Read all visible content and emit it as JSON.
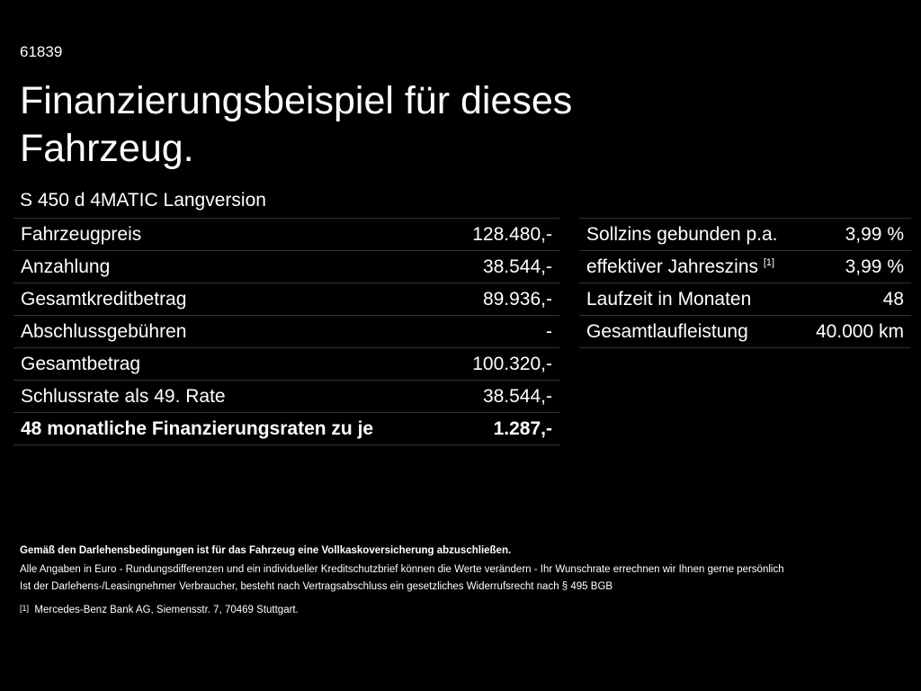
{
  "header": {
    "code": "61839",
    "title_line1": "Finanzierungsbeispiel für dieses",
    "title_line2": "Fahrzeug.",
    "model": "S 450 d 4MATIC Langversion"
  },
  "left_table": {
    "rows": [
      [
        "Fahrzeugpreis",
        "128.480,-"
      ],
      [
        "Anzahlung",
        "38.544,-"
      ],
      [
        "Gesamtkreditbetrag",
        "89.936,-"
      ],
      [
        "Abschlussgebühren",
        "-"
      ],
      [
        "Gesamtbetrag",
        "100.320,-"
      ],
      [
        "Schlussrate als 49. Rate",
        "38.544,-"
      ],
      [
        "48 monatliche Finanzierungsraten zu je",
        "1.287,-"
      ]
    ]
  },
  "right_table": {
    "rows": [
      {
        "label": "Sollzins gebunden p.a.",
        "value": "3,99 %"
      },
      {
        "label": "effektiver Jahreszins",
        "note": "[1]",
        "value": "3,99 %"
      },
      {
        "label": "Laufzeit in Monaten",
        "value": "48"
      },
      {
        "label": "Gesamtlaufleistung",
        "value": "40.000 km"
      }
    ]
  },
  "footer": {
    "notice": "Gemäß den Darlehensbedingungen ist für das Fahrzeug eine Vollkaskoversicherung abzuschließen.",
    "line1": "Alle Angaben in Euro - Rundungsdifferenzen und ein individueller Kreditschutzbrief können die Werte verändern - Ihr Wunschrate errechnen wir Ihnen gerne persönlich",
    "line2": "Ist der Darlehens-/Leasingnehmer Verbraucher, besteht nach Vertragsabschluss ein gesetzliches Widerrufsrecht nach § 495 BGB",
    "footnote_mark": "[1]",
    "footnote_text": "Mercedes-Benz Bank AG, Siemensstr. 7, 70469 Stuttgart."
  }
}
